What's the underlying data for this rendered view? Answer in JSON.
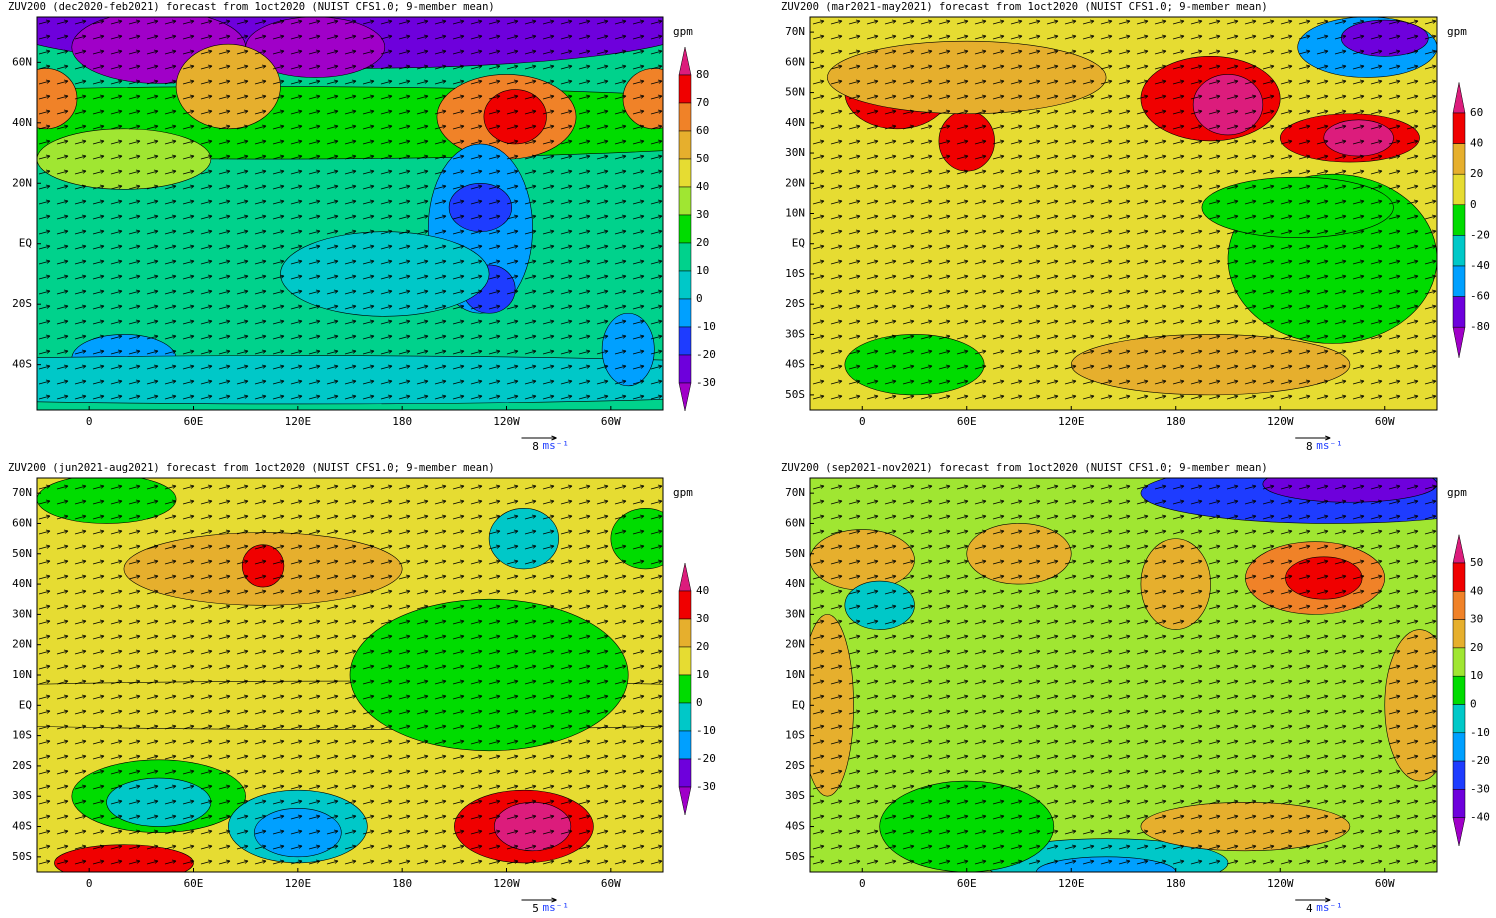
{
  "panels": [
    {
      "title": "ZUV200 (dec2020-feb2021) forecast from 1oct2020 (NUIST CFS1.0; 9-member mean)",
      "xlim": [
        -30,
        330
      ],
      "ylim": [
        -55,
        75
      ],
      "lon_ticks": [
        0,
        {
          "value": 60,
          "label": "60E"
        },
        {
          "value": 120,
          "label": "120E"
        },
        {
          "value": 180,
          "label": "180"
        },
        {
          "value": 240,
          "label": "120W"
        },
        {
          "value": 300,
          "label": "60W"
        }
      ],
      "lat_ticks": [
        {
          "value": 60,
          "label": "60N"
        },
        {
          "value": 40,
          "label": "40N"
        },
        {
          "value": 20,
          "label": "20N"
        },
        {
          "value": 0,
          "label": "EQ"
        },
        {
          "value": -20,
          "label": "20S"
        },
        {
          "value": -40,
          "label": "40S"
        }
      ],
      "colorbar": {
        "unit": "gpm",
        "levels": [
          80,
          70,
          60,
          50,
          40,
          30,
          20,
          10,
          0,
          -10,
          -20,
          -30
        ],
        "colors": [
          "#dc1c7c",
          "#f00000",
          "#f08228",
          "#e6af2d",
          "#e6dc32",
          "#a0e632",
          "#00dc00",
          "#00d28c",
          "#00c8c8",
          "#00a0ff",
          "#1e3cff",
          "#6e00dc",
          "#a000c8"
        ]
      },
      "ref_vector": {
        "value": 8,
        "unit": "ms⁻¹"
      }
    },
    {
      "title": "ZUV200 (mar2021-may2021) forecast from 1oct2020 (NUIST CFS1.0; 9-member mean)",
      "xlim": [
        -30,
        330
      ],
      "ylim": [
        -55,
        75
      ],
      "lon_ticks": [
        0,
        {
          "value": 60,
          "label": "60E"
        },
        {
          "value": 120,
          "label": "120E"
        },
        {
          "value": 180,
          "label": "180"
        },
        {
          "value": 240,
          "label": "120W"
        },
        {
          "value": 300,
          "label": "60W"
        }
      ],
      "lat_ticks": [
        {
          "value": 70,
          "label": "70N"
        },
        {
          "value": 60,
          "label": "60N"
        },
        {
          "value": 50,
          "label": "50N"
        },
        {
          "value": 40,
          "label": "40N"
        },
        {
          "value": 30,
          "label": "30N"
        },
        {
          "value": 20,
          "label": "20N"
        },
        {
          "value": 10,
          "label": "10N"
        },
        {
          "value": 0,
          "label": "EQ"
        },
        {
          "value": -10,
          "label": "10S"
        },
        {
          "value": -20,
          "label": "20S"
        },
        {
          "value": -30,
          "label": "30S"
        },
        {
          "value": -40,
          "label": "40S"
        },
        {
          "value": -50,
          "label": "50S"
        }
      ],
      "colorbar": {
        "unit": "gpm",
        "levels": [
          60,
          40,
          20,
          0,
          -20,
          -40,
          -60,
          -80
        ],
        "colors": [
          "#dc1c7c",
          "#f00000",
          "#e6af2d",
          "#e6dc32",
          "#00dc00",
          "#00c8c8",
          "#00a0ff",
          "#6e00dc",
          "#a000c8"
        ]
      },
      "ref_vector": {
        "value": 8,
        "unit": "ms⁻¹"
      }
    },
    {
      "title": "ZUV200 (jun2021-aug2021) forecast from 1oct2020 (NUIST CFS1.0; 9-member mean)",
      "xlim": [
        -30,
        330
      ],
      "ylim": [
        -55,
        75
      ],
      "lon_ticks": [
        0,
        {
          "value": 60,
          "label": "60E"
        },
        {
          "value": 120,
          "label": "120E"
        },
        {
          "value": 180,
          "label": "180"
        },
        {
          "value": 240,
          "label": "120W"
        },
        {
          "value": 300,
          "label": "60W"
        }
      ],
      "lat_ticks": [
        {
          "value": 70,
          "label": "70N"
        },
        {
          "value": 60,
          "label": "60N"
        },
        {
          "value": 50,
          "label": "50N"
        },
        {
          "value": 40,
          "label": "40N"
        },
        {
          "value": 30,
          "label": "30N"
        },
        {
          "value": 20,
          "label": "20N"
        },
        {
          "value": 10,
          "label": "10N"
        },
        {
          "value": 0,
          "label": "EQ"
        },
        {
          "value": -10,
          "label": "10S"
        },
        {
          "value": -20,
          "label": "20S"
        },
        {
          "value": -30,
          "label": "30S"
        },
        {
          "value": -40,
          "label": "40S"
        },
        {
          "value": -50,
          "label": "50S"
        }
      ],
      "colorbar": {
        "unit": "gpm",
        "levels": [
          40,
          30,
          20,
          10,
          0,
          -10,
          -20,
          -30
        ],
        "colors": [
          "#dc1c7c",
          "#f00000",
          "#e6af2d",
          "#e6dc32",
          "#00dc00",
          "#00c8c8",
          "#00a0ff",
          "#6e00dc",
          "#a000c8"
        ]
      },
      "ref_vector": {
        "value": 5,
        "unit": "ms⁻¹"
      }
    },
    {
      "title": "ZUV200 (sep2021-nov2021) forecast from 1oct2020 (NUIST CFS1.0; 9-member mean)",
      "xlim": [
        -30,
        330
      ],
      "ylim": [
        -55,
        75
      ],
      "lon_ticks": [
        0,
        {
          "value": 60,
          "label": "60E"
        },
        {
          "value": 120,
          "label": "120E"
        },
        {
          "value": 180,
          "label": "180"
        },
        {
          "value": 240,
          "label": "120W"
        },
        {
          "value": 300,
          "label": "60W"
        }
      ],
      "lat_ticks": [
        {
          "value": 70,
          "label": "70N"
        },
        {
          "value": 60,
          "label": "60N"
        },
        {
          "value": 50,
          "label": "50N"
        },
        {
          "value": 40,
          "label": "40N"
        },
        {
          "value": 30,
          "label": "30N"
        },
        {
          "value": 20,
          "label": "20N"
        },
        {
          "value": 10,
          "label": "10N"
        },
        {
          "value": 0,
          "label": "EQ"
        },
        {
          "value": -10,
          "label": "10S"
        },
        {
          "value": -20,
          "label": "20S"
        },
        {
          "value": -30,
          "label": "30S"
        },
        {
          "value": -40,
          "label": "40S"
        },
        {
          "value": -50,
          "label": "50S"
        }
      ],
      "colorbar": {
        "unit": "gpm",
        "levels": [
          50,
          40,
          30,
          20,
          10,
          0,
          -10,
          -20,
          -30,
          -40
        ],
        "colors": [
          "#dc1c7c",
          "#f00000",
          "#f08228",
          "#e6af2d",
          "#a0e632",
          "#00dc00",
          "#00c8c8",
          "#00a0ff",
          "#1e3cff",
          "#6e00dc",
          "#a000c8"
        ]
      },
      "ref_vector": {
        "value": 4,
        "unit": "ms⁻¹"
      }
    }
  ]
}
